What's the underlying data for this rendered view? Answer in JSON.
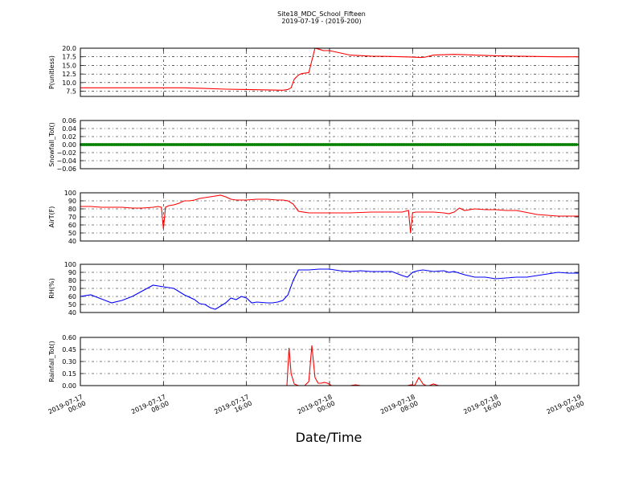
{
  "chart_data": {
    "title": "Site18_MDC_School_Fifteen",
    "subtitle": "2019-07-19 - (2019-200)",
    "xlabel": "Date/Time",
    "type": "line",
    "x_ticks": [
      "2019-07-17 00:00",
      "2019-07-17 08:00",
      "2019-07-17 16:00",
      "2019-07-18 00:00",
      "2019-07-18 08:00",
      "2019-07-18 16:00",
      "2019-07-19 00:00"
    ],
    "x_tick_lines": [
      [
        "2019-07-17",
        "00:00"
      ],
      [
        "2019-07-17",
        "08:00"
      ],
      [
        "2019-07-17",
        "16:00"
      ],
      [
        "2019-07-18",
        "00:00"
      ],
      [
        "2019-07-18",
        "08:00"
      ],
      [
        "2019-07-18",
        "16:00"
      ],
      [
        "2019-07-19",
        "00:00"
      ]
    ],
    "x_range_hours": [
      0,
      48
    ],
    "grid": true,
    "panels": [
      {
        "ylabel": "P(unitless)",
        "ylim": [
          6.0,
          20.0
        ],
        "yticks": [
          "7.5",
          "10.0",
          "12.5",
          "15.0",
          "17.5",
          "20.0"
        ],
        "ytick_values": [
          7.5,
          10.0,
          12.5,
          15.0,
          17.5,
          20.0
        ],
        "color": "#ff0000",
        "x": [
          0,
          2,
          4,
          6,
          8,
          10,
          12,
          14,
          16,
          18,
          19.5,
          20,
          20.3,
          20.6,
          21,
          21.3,
          21.5,
          22,
          22.6,
          23,
          23.4,
          24,
          26,
          28,
          30,
          32,
          32.8,
          33.2,
          34,
          36,
          38,
          40,
          42,
          44,
          46,
          48
        ],
        "y": [
          8.5,
          8.5,
          8.5,
          8.5,
          8.5,
          8.5,
          8.3,
          8.1,
          8.0,
          7.9,
          7.8,
          8.0,
          8.5,
          11.0,
          12.2,
          12.6,
          12.7,
          12.9,
          20.0,
          19.7,
          19.3,
          19.3,
          18.0,
          17.7,
          17.6,
          17.4,
          17.3,
          17.4,
          18.0,
          18.2,
          18.0,
          17.8,
          17.7,
          17.6,
          17.5,
          17.5
        ]
      },
      {
        "ylabel": "Snowfall_Tot()",
        "ylim": [
          -0.06,
          0.06
        ],
        "yticks": [
          "−0.06",
          "−0.04",
          "−0.02",
          "0.00",
          "0.02",
          "0.04",
          "0.06"
        ],
        "ytick_values": [
          -0.06,
          -0.04,
          -0.02,
          0.0,
          0.02,
          0.04,
          0.06
        ],
        "color": "#008000",
        "x": [
          0,
          48
        ],
        "y": [
          0.0,
          0.0
        ],
        "markers": true
      },
      {
        "ylabel": "AirT(F)",
        "ylim": [
          40,
          100
        ],
        "yticks": [
          "40",
          "50",
          "60",
          "70",
          "80",
          "90",
          "100"
        ],
        "ytick_values": [
          40,
          50,
          60,
          70,
          80,
          90,
          100
        ],
        "color": "#ff0000",
        "x": [
          0,
          1,
          2,
          3,
          4,
          5,
          6,
          7,
          7.5,
          7.8,
          8.0,
          8.2,
          8.5,
          9,
          9.5,
          10,
          10.5,
          11,
          11.5,
          12,
          12.5,
          13,
          13.5,
          14,
          14.5,
          15,
          15.5,
          16,
          17,
          18,
          19,
          19.5,
          20,
          20.5,
          21,
          22,
          23,
          24,
          26,
          28,
          30,
          31,
          31.6,
          31.8,
          32,
          32.3,
          33,
          34,
          35,
          35.5,
          36,
          36.5,
          37,
          38,
          39,
          40,
          41,
          42,
          44,
          46,
          48
        ],
        "y": [
          83,
          83,
          82,
          82,
          82,
          81,
          81,
          82,
          83,
          82,
          55,
          82,
          84,
          85,
          87,
          90,
          90,
          91,
          93,
          94,
          95,
          96,
          97,
          95,
          92,
          91,
          91,
          91,
          92,
          92,
          91,
          91,
          90,
          86,
          77,
          75,
          75,
          75,
          75,
          76,
          76,
          76,
          78,
          50,
          75,
          76,
          76,
          76,
          75,
          74,
          76,
          81,
          78,
          80,
          79,
          79,
          78,
          78,
          73,
          71,
          71
        ]
      },
      {
        "ylabel": "RH(%)",
        "ylim": [
          40,
          100
        ],
        "yticks": [
          "40",
          "50",
          "60",
          "70",
          "80",
          "90",
          "100"
        ],
        "ytick_values": [
          40,
          50,
          60,
          70,
          80,
          90,
          100
        ],
        "color": "#0000ff",
        "x": [
          0,
          1,
          2,
          3,
          4,
          5,
          6,
          7,
          8,
          9,
          10,
          11,
          11.5,
          12,
          12.5,
          13,
          13.5,
          14,
          14.5,
          15,
          15.5,
          16,
          16.5,
          17,
          18,
          18.5,
          19,
          19.5,
          20,
          20.5,
          21,
          22,
          23,
          24,
          25,
          26,
          27,
          28,
          29,
          30,
          31,
          31.5,
          32,
          32.5,
          33,
          34,
          35,
          35.5,
          36,
          37,
          38,
          39,
          40,
          41,
          42,
          43,
          44,
          45,
          46,
          47,
          48
        ],
        "y": [
          60,
          62,
          57,
          52,
          55,
          60,
          67,
          74,
          72,
          70,
          62,
          56,
          51,
          50,
          46,
          44,
          48,
          52,
          58,
          56,
          60,
          58,
          52,
          53,
          52,
          52,
          53,
          55,
          62,
          80,
          93,
          93,
          94,
          94,
          92,
          91,
          92,
          91,
          91,
          91,
          86,
          84,
          90,
          92,
          93,
          91,
          92,
          90,
          91,
          87,
          84,
          84,
          82,
          83,
          84,
          84,
          86,
          88,
          90,
          89,
          89
        ]
      },
      {
        "ylabel": "Rainfall_Tot()",
        "ylim": [
          0.0,
          0.6
        ],
        "yticks": [
          "0.00",
          "0.15",
          "0.30",
          "0.45",
          "0.60"
        ],
        "ytick_values": [
          0.0,
          0.15,
          0.3,
          0.45,
          0.6
        ],
        "color": "#ff0000",
        "x": [
          0,
          8,
          16,
          19.9,
          20.1,
          20.3,
          20.6,
          21,
          21.6,
          22,
          22.3,
          22.6,
          22.9,
          23.2,
          23.5,
          23.8,
          24.2,
          25,
          26,
          26.5,
          27,
          28,
          30,
          31,
          31.5,
          31.9,
          32.2,
          32.6,
          33,
          33.3,
          33.6,
          34,
          34.5,
          35,
          36,
          40,
          48
        ],
        "y": [
          0,
          0,
          0,
          0,
          0.47,
          0.15,
          0.02,
          0.0,
          0.0,
          0.05,
          0.5,
          0.1,
          0.03,
          0.03,
          0.04,
          0.03,
          0.0,
          0.0,
          0.0,
          0.01,
          0.0,
          0.0,
          0.0,
          0.0,
          0.0,
          0.01,
          0.0,
          0.1,
          0.02,
          0.0,
          0.0,
          0.02,
          0.0,
          0.0,
          0.0,
          0.0,
          0.0
        ]
      }
    ]
  }
}
